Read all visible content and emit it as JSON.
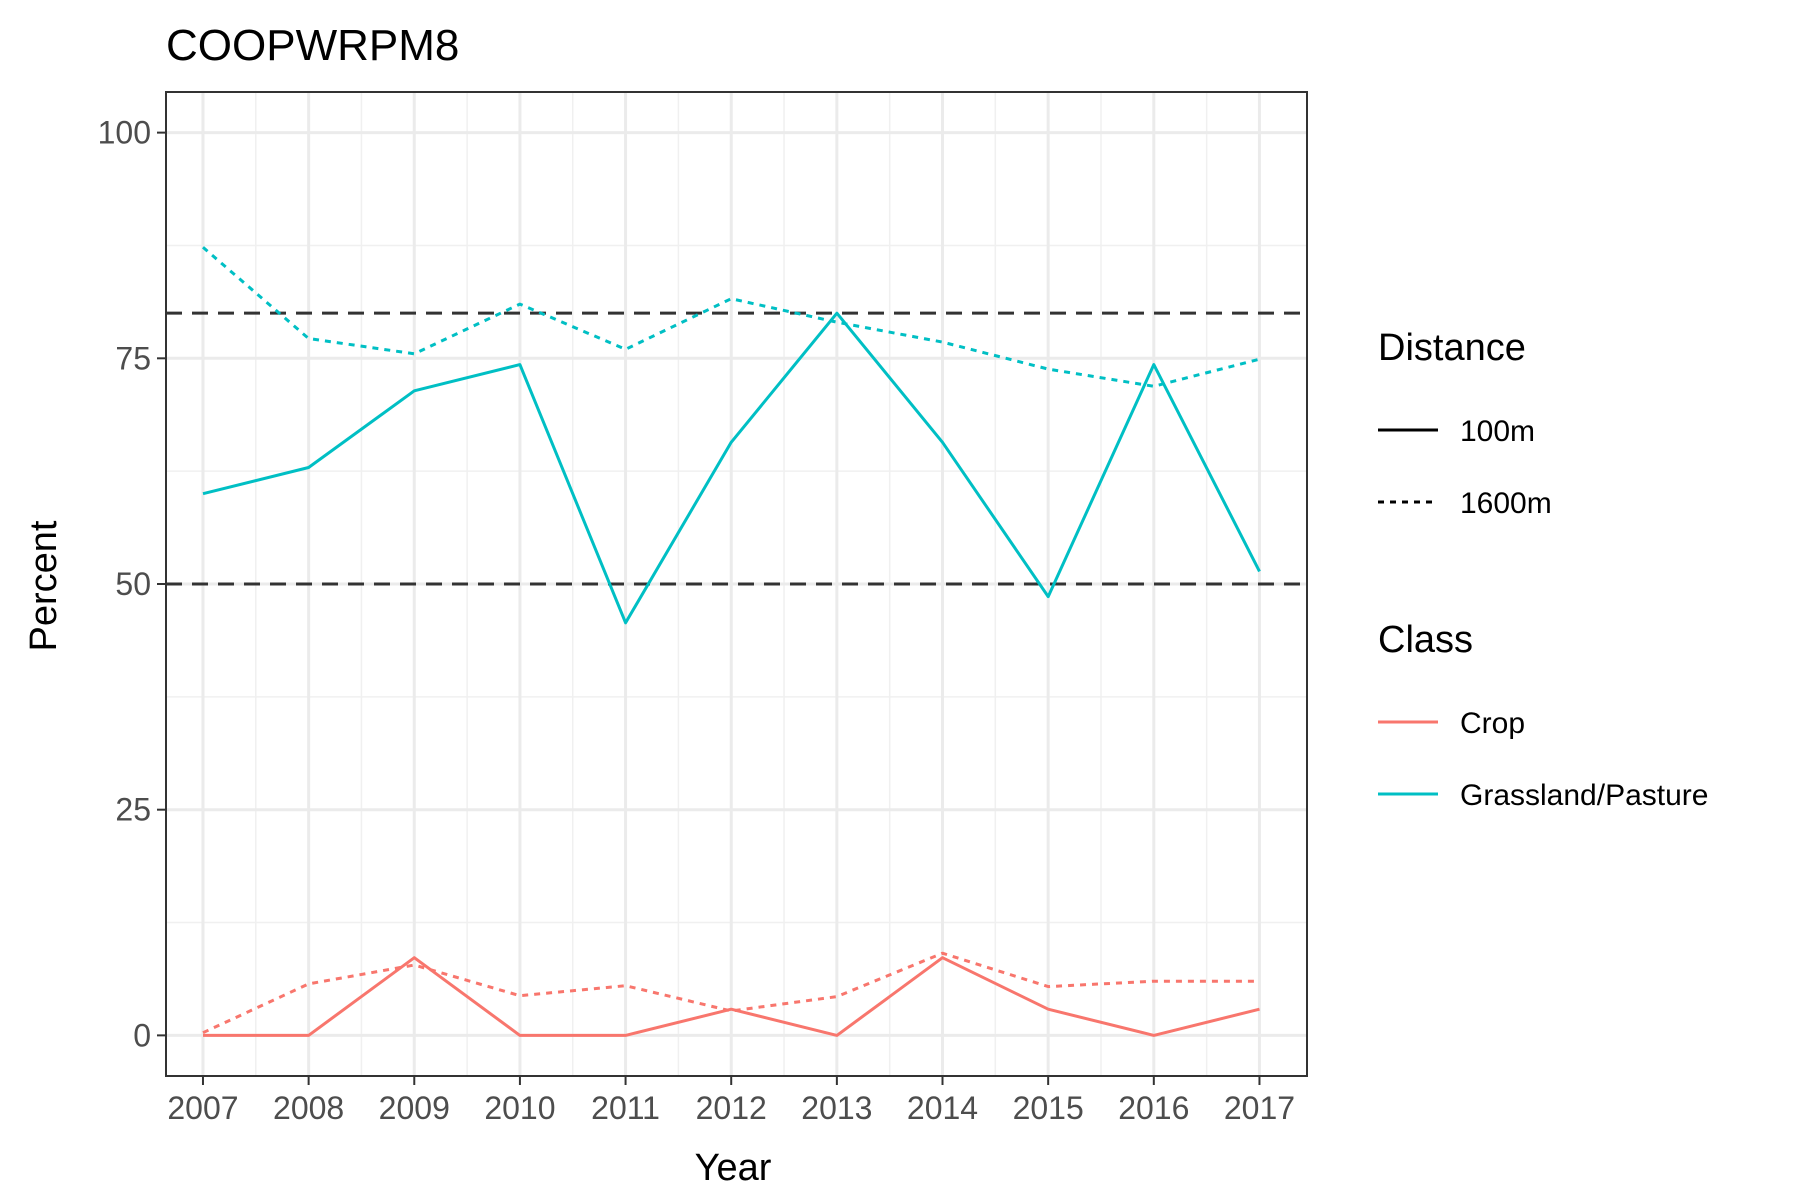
{
  "chart_data": {
    "type": "line",
    "title": "COOPWRPM8",
    "xlabel": "Year",
    "ylabel": "Percent",
    "x": [
      2007,
      2008,
      2009,
      2010,
      2011,
      2012,
      2013,
      2014,
      2015,
      2016,
      2017
    ],
    "x_tick_labels": [
      "2007",
      "2008",
      "2009",
      "2010",
      "2011",
      "2012",
      "2013",
      "2014",
      "2015",
      "2016",
      "2017"
    ],
    "y_ticks": [
      0,
      25,
      50,
      75,
      100
    ],
    "y_tick_labels": [
      "0",
      "25",
      "50",
      "75",
      "100"
    ],
    "xlim": [
      2006.65,
      2017.45
    ],
    "ylim": [
      -4.5,
      104.5
    ],
    "grid": true,
    "reference_lines": [
      {
        "y": 80,
        "style": "dashed"
      },
      {
        "y": 50,
        "style": "dashed"
      }
    ],
    "series": [
      {
        "class": "Crop",
        "distance": "100m",
        "values": [
          0,
          0,
          8.6,
          0,
          0,
          2.9,
          0,
          8.6,
          2.9,
          0,
          2.9
        ]
      },
      {
        "class": "Crop",
        "distance": "1600m",
        "values": [
          0.3,
          5.7,
          7.8,
          4.4,
          5.5,
          2.7,
          4.3,
          9.1,
          5.4,
          6.0,
          6.0
        ]
      },
      {
        "class": "Grassland/Pasture",
        "distance": "100m",
        "values": [
          60.0,
          62.9,
          71.4,
          74.3,
          45.7,
          65.7,
          80.0,
          65.7,
          48.6,
          74.3,
          51.4
        ]
      },
      {
        "class": "Grassland/Pasture",
        "distance": "1600m",
        "values": [
          87.3,
          77.2,
          75.5,
          81.0,
          76.0,
          81.6,
          79.0,
          76.8,
          73.8,
          71.9,
          74.9
        ]
      }
    ],
    "legend": {
      "placement": "right",
      "groups": [
        {
          "title": "Distance",
          "items": [
            {
              "label": "100m",
              "style": "solid"
            },
            {
              "label": "1600m",
              "style": "dotted"
            }
          ]
        },
        {
          "title": "Class",
          "items": [
            {
              "label": "Crop",
              "color": "#F8766D"
            },
            {
              "label": "Grassland/Pasture",
              "color": "#00BFC4"
            }
          ]
        }
      ]
    },
    "colors": {
      "Crop": "#F8766D",
      "Grassland/Pasture": "#00BFC4",
      "reference": "#333333"
    }
  }
}
